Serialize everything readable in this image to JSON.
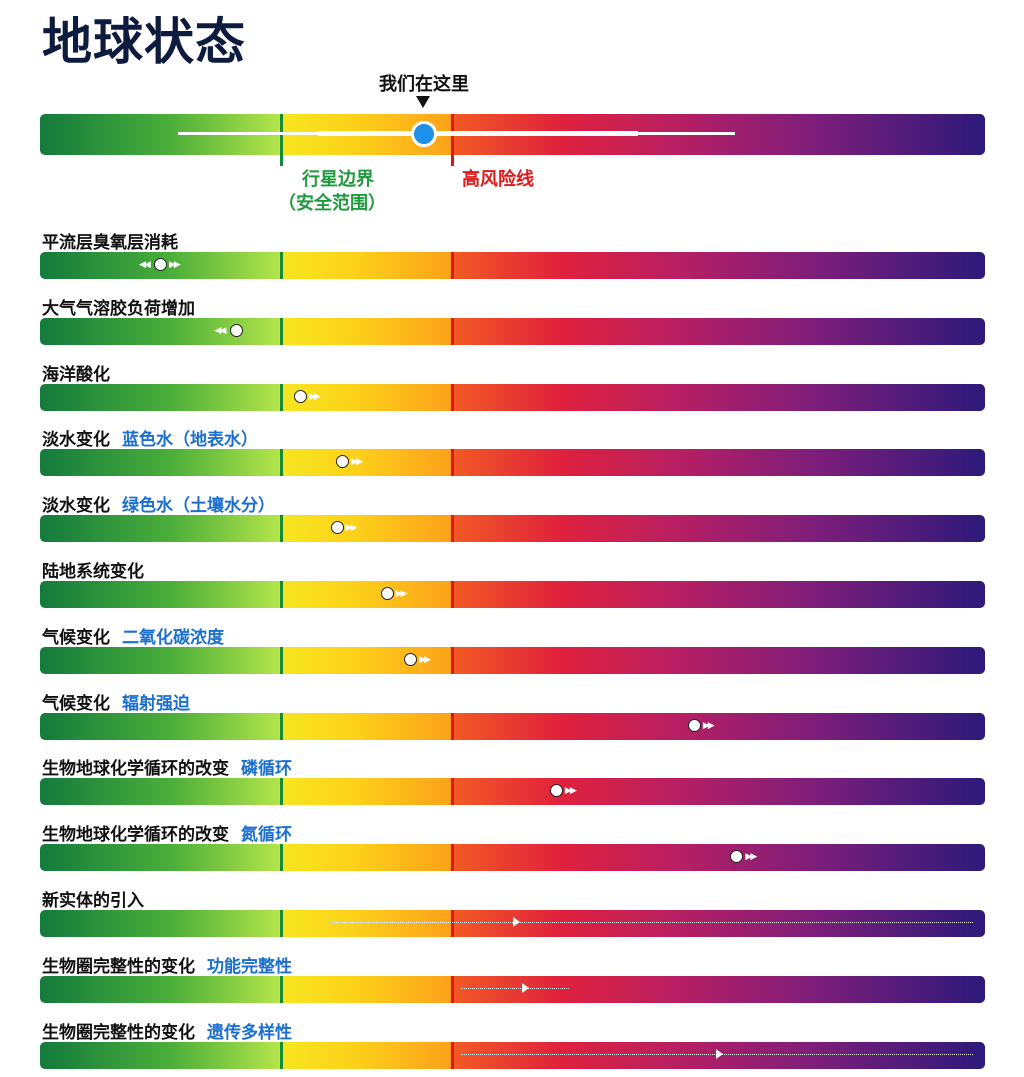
{
  "title": "地球状态",
  "here_label": "我们在这里",
  "boundary_labels": {
    "safe_line1": "行星边界",
    "safe_line2": "（安全范围）",
    "high_risk": "高风险线"
  },
  "chart_data": {
    "type": "bar",
    "title": "地球状态",
    "scale_note": "position along gradient from safe (green) to high risk (purple); 0 = left edge, 1 = right edge",
    "planetary_boundary": 0.255,
    "high_risk_line": 0.436,
    "current_status": 0.405,
    "rows": [
      {
        "label": "平流层臭氧层消耗",
        "sub": "",
        "value": 0.128,
        "trend": "both",
        "unquantified": false
      },
      {
        "label": "大气气溶胶负荷增加",
        "sub": "",
        "value": 0.208,
        "trend": "left",
        "unquantified": false
      },
      {
        "label": "海洋酸化",
        "sub": "",
        "value": 0.276,
        "trend": "right",
        "unquantified": false
      },
      {
        "label": "淡水变化",
        "sub": "蓝色水（地表水）",
        "value": 0.321,
        "trend": "right",
        "unquantified": false
      },
      {
        "label": "淡水变化",
        "sub": "绿色水（土壤水分）",
        "value": 0.315,
        "trend": "right",
        "unquantified": false
      },
      {
        "label": "陆地系统变化",
        "sub": "",
        "value": 0.368,
        "trend": "right",
        "unquantified": false
      },
      {
        "label": "气候变化",
        "sub": "二氧化碳浓度",
        "value": 0.393,
        "trend": "right",
        "unquantified": false
      },
      {
        "label": "气候变化",
        "sub": "辐射强迫",
        "value": 0.693,
        "trend": "right",
        "unquantified": false
      },
      {
        "label": "生物地球化学循环的改变",
        "sub": "磷循环",
        "value": 0.547,
        "trend": "right",
        "unquantified": false
      },
      {
        "label": "生物地球化学循环的改变",
        "sub": "氮循环",
        "value": 0.738,
        "trend": "right",
        "unquantified": false
      },
      {
        "label": "新实体的引入",
        "sub": "",
        "value": null,
        "trend": "range",
        "unquantified": true,
        "range": [
          0.307,
          0.987
        ],
        "arrow_at": 0.5
      },
      {
        "label": "生物圈完整性的变化",
        "sub": "功能完整性",
        "value": null,
        "trend": "range",
        "unquantified": true,
        "range": [
          0.445,
          0.56
        ],
        "arrow_at": 0.51
      },
      {
        "label": "生物圈完整性的变化",
        "sub": "遗传多样性",
        "value": null,
        "trend": "range",
        "unquantified": true,
        "range": [
          0.445,
          0.987
        ],
        "arrow_at": 0.715
      }
    ]
  }
}
